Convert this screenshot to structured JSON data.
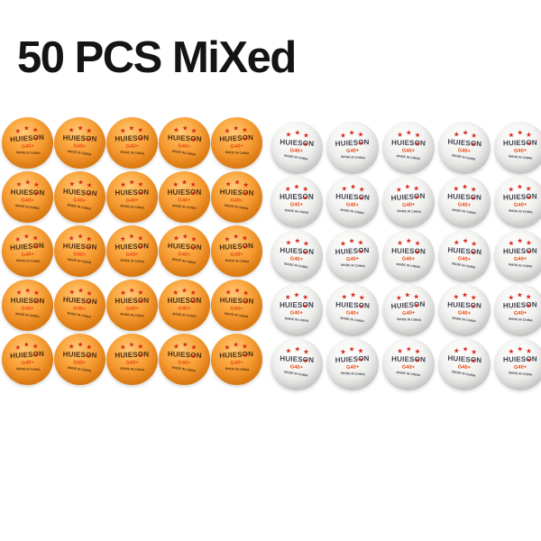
{
  "title": "50 PCS MiXed",
  "product": {
    "brand_pre": "HUIES",
    "brand_o": "O",
    "brand_post": "N",
    "grade": "G40+",
    "origin": "MADE IN CHINA",
    "star_glyph": "★",
    "star_count": 3,
    "rows": 5,
    "orange_cols": 5,
    "white_cols": 5,
    "orange_count": 25,
    "white_count": 25,
    "total_count": 50
  },
  "colors": {
    "orange_ball": "#f3942a",
    "white_ball": "#efefed",
    "star_red": "#d8271b",
    "grade_red": "#e8470f",
    "brand_on_orange": "#4b2c0f",
    "brand_on_white": "#3f3f4c",
    "title_black": "#141414",
    "background": "#ffffff"
  }
}
